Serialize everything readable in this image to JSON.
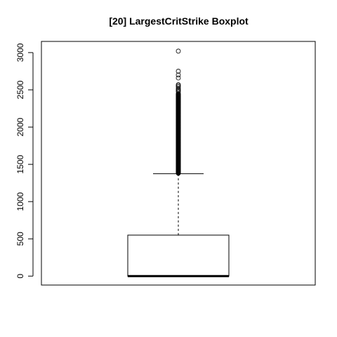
{
  "chart_data": {
    "type": "boxplot",
    "title": "[20] LargestCritStrike Boxplot",
    "xlabel": "",
    "ylabel": "",
    "ylim": [
      -120,
      3150
    ],
    "y_ticks": [
      0,
      500,
      1000,
      1500,
      2000,
      2500,
      3000
    ],
    "grid": false,
    "box": {
      "min": 0,
      "q1": 0,
      "median": 0,
      "q3": 550,
      "whisker_low": 0,
      "whisker_high": 1375
    },
    "outlier_range": [
      1380,
      2450
    ],
    "outliers": [
      2475,
      2490,
      2505,
      2520,
      2540,
      2555,
      2570,
      2660,
      2700,
      2750,
      3020
    ]
  }
}
